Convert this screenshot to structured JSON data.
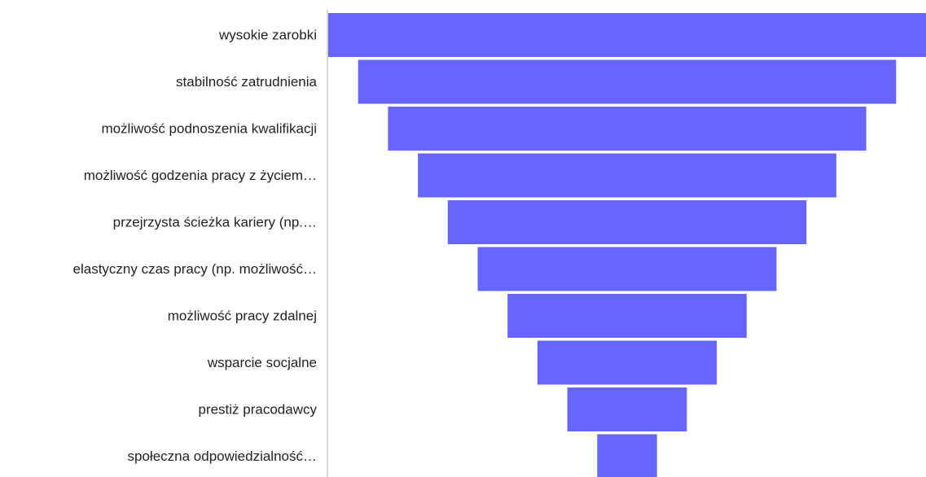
{
  "chart_data": {
    "type": "bar",
    "subtype": "funnel",
    "title": "",
    "xlabel": "",
    "ylabel": "",
    "categories": [
      "wysokie zarobki",
      "stabilność zatrudnienia",
      "możliwość podnoszenia kwalifikacji",
      "możliwość godzenia pracy z życiem…",
      "przejrzysta ścieżka kariery (np.…",
      "elastyczny czas pracy (np. możliwość…",
      "możliwość pracy zdalnej",
      "wsparcie socjalne",
      "prestiż pracodawcy",
      "społeczna odpowiedzialność…"
    ],
    "values": [
      100,
      90,
      80,
      70,
      60,
      50,
      40,
      30,
      20,
      10
    ],
    "bar_color": "#6666FF",
    "axis_line_color": "#CCCCCC",
    "grid": false,
    "legend": "none"
  }
}
